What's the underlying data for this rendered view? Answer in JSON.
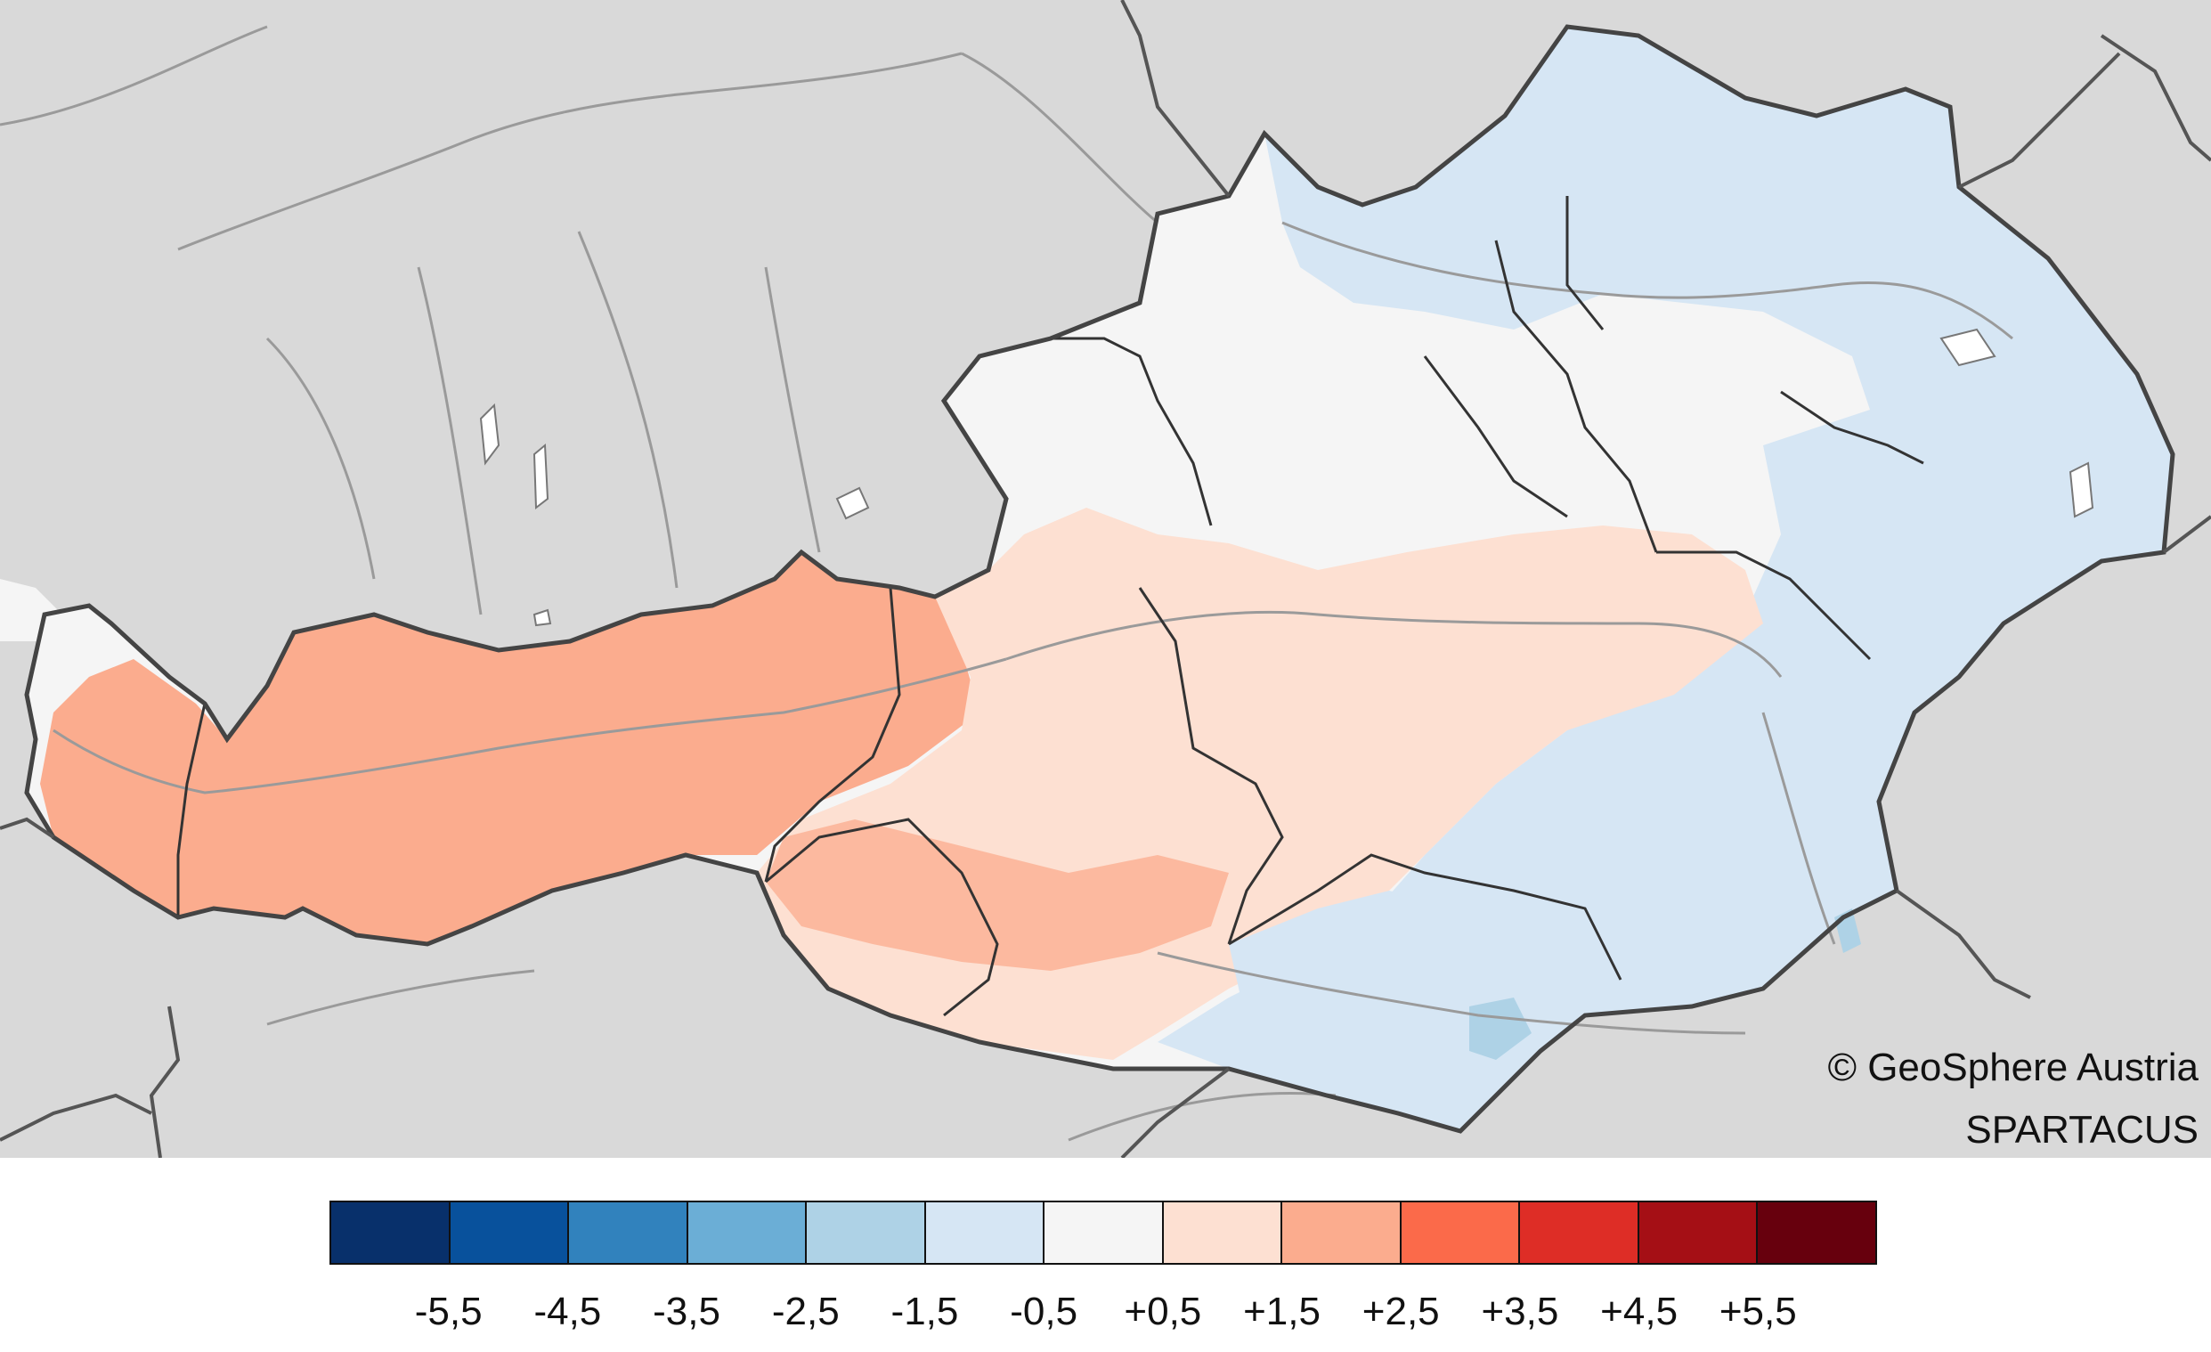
{
  "credits": {
    "line1": "© GeoSphere Austria",
    "line2": "SPARTACUS"
  },
  "legend": {
    "colors": [
      "#08306b",
      "#08519c",
      "#3182bd",
      "#6baed6",
      "#aed2e6",
      "#d6e6f4",
      "#f5f5f5",
      "#fde0d2",
      "#fbac8e",
      "#fb6a4a",
      "#de2d26",
      "#a50f15",
      "#67000d"
    ],
    "labels": [
      "-5,5",
      "-4,5",
      "-3,5",
      "-2,5",
      "-1,5",
      "-0,5",
      "+0,5",
      "+1,5",
      "+2,5",
      "+3,5",
      "+4,5",
      "+5,5"
    ]
  },
  "map": {
    "region": "Austria",
    "background_color": "#d9d9d9",
    "border_color": "#444444",
    "river_color": "#999999"
  }
}
